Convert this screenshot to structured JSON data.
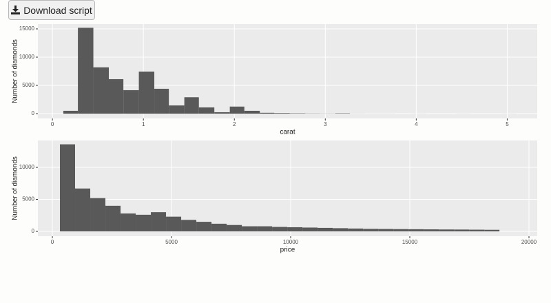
{
  "button": {
    "label": "Download script"
  },
  "chart_data": [
    {
      "type": "histogram",
      "x_label": "carat",
      "y_label": "Number of diamonds",
      "color": "#595959",
      "grid": true,
      "bins": [
        0.12,
        0.28,
        0.45,
        0.62,
        0.78,
        0.95,
        1.12,
        1.28,
        1.45,
        1.61,
        1.78,
        1.95,
        2.11,
        2.28,
        2.44,
        2.61,
        2.78,
        2.94,
        3.11,
        3.27,
        3.44,
        3.61,
        3.77,
        3.94,
        4.11,
        4.27,
        4.44,
        4.6,
        4.77,
        4.94,
        5.1
      ],
      "values": [
        500,
        15200,
        8200,
        6100,
        4150,
        7450,
        4400,
        1450,
        2900,
        1100,
        250,
        1250,
        500,
        150,
        100,
        60,
        30,
        20,
        60,
        10,
        5,
        5,
        0,
        5,
        0,
        0,
        5,
        0,
        0,
        5
      ],
      "xlim": [
        -0.16,
        5.33
      ],
      "xticks": [
        0,
        1,
        2,
        3,
        4,
        5
      ],
      "ylim": [
        -850,
        15850
      ],
      "yticks": [
        0,
        5000,
        10000,
        15000
      ]
    },
    {
      "type": "histogram",
      "x_label": "price",
      "y_label": "Number of diamonds",
      "color": "#595959",
      "grid": true,
      "bins": [
        318,
        954,
        1590,
        2226,
        2862,
        3498,
        4134,
        4770,
        5406,
        6042,
        6678,
        7314,
        7950,
        8586,
        9222,
        9858,
        10494,
        11130,
        11766,
        12402,
        13038,
        13674,
        14310,
        14946,
        15582,
        16218,
        16854,
        17490,
        18126,
        18762
      ],
      "values": [
        13600,
        6700,
        5200,
        4000,
        2800,
        2600,
        3000,
        2300,
        1800,
        1500,
        1200,
        1000,
        800,
        800,
        700,
        650,
        600,
        550,
        500,
        450,
        400,
        380,
        360,
        340,
        320,
        300,
        290,
        270,
        250
      ],
      "xlim": [
        -607,
        20347
      ],
      "xticks": [
        0,
        5000,
        10000,
        15000,
        20000
      ],
      "ylim": [
        -750,
        14200
      ],
      "yticks": [
        0,
        5000,
        10000
      ]
    }
  ]
}
